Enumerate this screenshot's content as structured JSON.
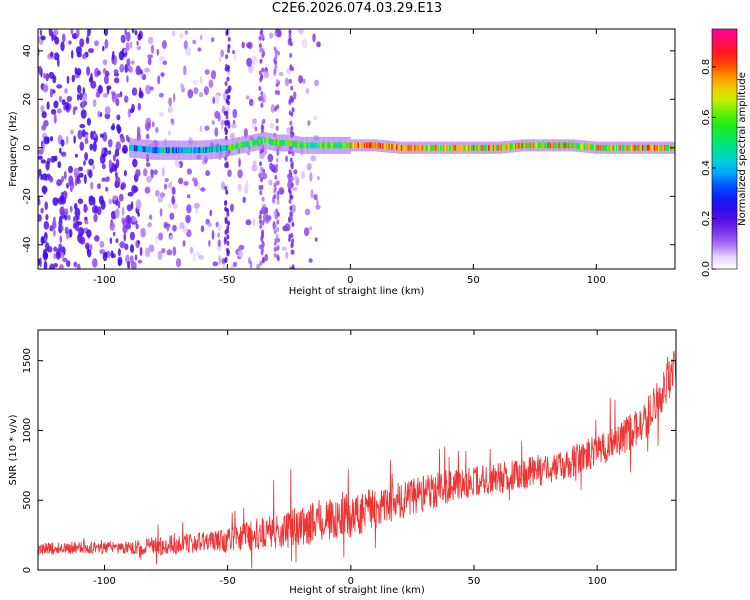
{
  "title": "C2E6.2026.074.03.29.E13",
  "chart_data": [
    {
      "type": "heatmap",
      "title": "C2E6.2026.074.03.29.E13",
      "xlabel": "Height of straight line (km)",
      "ylabel": "Frequency (Hz)",
      "xlim": [
        -127,
        132
      ],
      "ylim": [
        -50,
        49
      ],
      "xticks": [
        -100,
        -50,
        0,
        50,
        100
      ],
      "xtick_labels": [
        "-100",
        "-50",
        "0",
        "50",
        "100"
      ],
      "yticks": [
        -40,
        -20,
        0,
        20,
        40
      ],
      "ytick_labels": [
        "-40",
        "-20",
        "0",
        "20",
        "40"
      ],
      "colorbar": {
        "label": "Normalized spectral amplitude",
        "ticks": [
          0.0,
          0.2,
          0.4,
          0.6,
          0.8
        ],
        "tick_labels": [
          "0.0",
          "0.2",
          "0.4",
          "0.6",
          "0.8"
        ],
        "range": [
          0,
          0.95
        ],
        "colormap": "rainbow (white-purple-blue-cyan-green-yellow-orange-red-magenta)"
      },
      "ridge": {
        "x": [
          -90,
          -80,
          -70,
          -60,
          -50,
          -40,
          -35,
          -30,
          -25,
          -20,
          -15,
          -10,
          0,
          10,
          20,
          30,
          40,
          50,
          60,
          70,
          80,
          90,
          100,
          110,
          120,
          130
        ],
        "y": [
          0,
          -1,
          -1,
          -1,
          0,
          2,
          3,
          2,
          2,
          1,
          1,
          1,
          1,
          1,
          0,
          0,
          0,
          0,
          0,
          1,
          1,
          1,
          0,
          0,
          0,
          0
        ]
      }
    },
    {
      "type": "line",
      "xlabel": "Height of straight line (km)",
      "ylabel": "SNR (10 * v/v)",
      "xlim": [
        -127,
        132
      ],
      "ylim": [
        0,
        1720
      ],
      "xticks": [
        -100,
        -50,
        0,
        50,
        100
      ],
      "xtick_labels": [
        "-100",
        "-50",
        "0",
        "50",
        "100"
      ],
      "yticks": [
        0,
        500,
        1000,
        1500
      ],
      "ytick_labels": [
        "0",
        "500",
        "1000",
        "1500"
      ],
      "series": [
        {
          "color": "#ee3333",
          "trend_x": [
            -127,
            -110,
            -100,
            -90,
            -80,
            -70,
            -60,
            -50,
            -40,
            -30,
            -20,
            -10,
            0,
            10,
            20,
            30,
            40,
            50,
            60,
            70,
            80,
            90,
            100,
            110,
            120,
            132
          ],
          "trend_y": [
            150,
            160,
            160,
            160,
            170,
            185,
            200,
            210,
            250,
            280,
            320,
            360,
            390,
            440,
            490,
            550,
            600,
            630,
            660,
            690,
            730,
            780,
            860,
            940,
            1080,
            1450
          ],
          "spread": [
            45,
            45,
            45,
            45,
            70,
            70,
            75,
            90,
            110,
            130,
            150,
            160,
            160,
            150,
            140,
            130,
            120,
            110,
            110,
            110,
            110,
            115,
            120,
            130,
            140,
            160
          ]
        }
      ]
    }
  ]
}
